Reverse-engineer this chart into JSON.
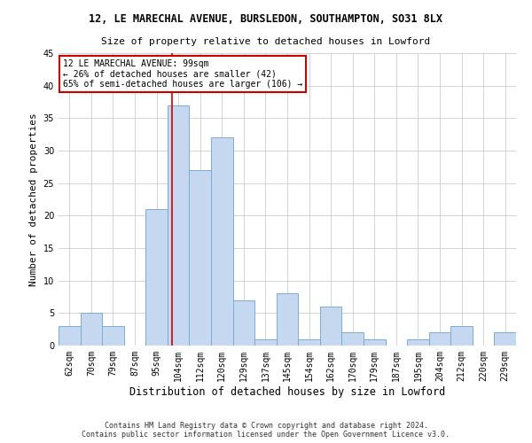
{
  "title": "12, LE MARECHAL AVENUE, BURSLEDON, SOUTHAMPTON, SO31 8LX",
  "subtitle": "Size of property relative to detached houses in Lowford",
  "xlabel": "Distribution of detached houses by size in Lowford",
  "ylabel": "Number of detached properties",
  "footer_line1": "Contains HM Land Registry data © Crown copyright and database right 2024.",
  "footer_line2": "Contains public sector information licensed under the Open Government Licence v3.0.",
  "annotation_line1": "12 LE MARECHAL AVENUE: 99sqm",
  "annotation_line2": "← 26% of detached houses are smaller (42)",
  "annotation_line3": "65% of semi-detached houses are larger (106) →",
  "categories": [
    "62sqm",
    "70sqm",
    "79sqm",
    "87sqm",
    "95sqm",
    "104sqm",
    "112sqm",
    "120sqm",
    "129sqm",
    "137sqm",
    "145sqm",
    "154sqm",
    "162sqm",
    "170sqm",
    "179sqm",
    "187sqm",
    "195sqm",
    "204sqm",
    "212sqm",
    "220sqm",
    "229sqm"
  ],
  "values": [
    3,
    5,
    3,
    0,
    21,
    37,
    27,
    32,
    7,
    1,
    8,
    1,
    6,
    2,
    1,
    0,
    1,
    2,
    3,
    0,
    2
  ],
  "bar_color": "#c5d8f0",
  "bar_edgecolor": "#7aadd4",
  "vline_color": "#cc0000",
  "vline_x": 4.72,
  "ylim": [
    0,
    45
  ],
  "yticks": [
    0,
    5,
    10,
    15,
    20,
    25,
    30,
    35,
    40,
    45
  ],
  "annotation_box_color": "#ffffff",
  "annotation_box_edgecolor": "#cc0000",
  "background_color": "#ffffff",
  "grid_color": "#cccccc",
  "title_fontsize": 8.5,
  "subtitle_fontsize": 8.0,
  "ylabel_fontsize": 8.0,
  "xlabel_fontsize": 8.5,
  "tick_fontsize": 7.0,
  "ann_fontsize": 7.0,
  "footer_fontsize": 6.0
}
